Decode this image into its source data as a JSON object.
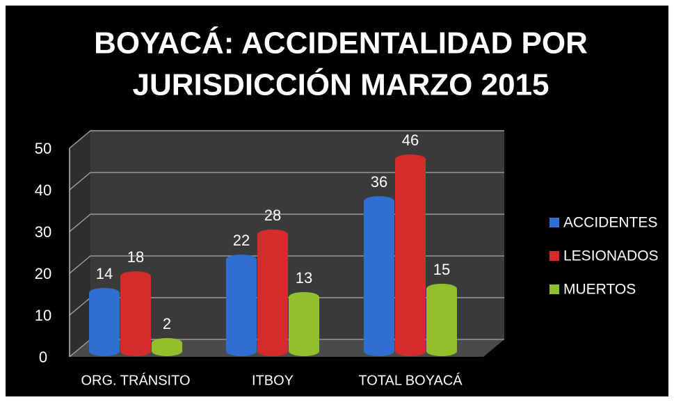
{
  "chart_data": {
    "type": "bar3d",
    "title": "BOYACÁ: ACCIDENTALIDAD POR JURISDICCIÓN MARZO 2015",
    "title_lines": [
      "BOYACÁ: ACCIDENTALIDAD POR",
      "JURISDICCIÓN MARZO 2015"
    ],
    "categories": [
      "ORG. TRÁNSITO",
      "ITBOY",
      "TOTAL BOYACÁ"
    ],
    "series": [
      {
        "name": "ACCIDENTES",
        "color": "#2f6fd1",
        "values": [
          14,
          22,
          36
        ]
      },
      {
        "name": "LESIONADOS",
        "color": "#d52b2b",
        "values": [
          18,
          28,
          46
        ]
      },
      {
        "name": "MUERTOS",
        "color": "#92c02c",
        "values": [
          2,
          13,
          15
        ]
      }
    ],
    "ylim": [
      0,
      50
    ],
    "yticks": [
      0,
      10,
      20,
      30,
      40,
      50
    ],
    "grid": true,
    "legend": "right"
  }
}
